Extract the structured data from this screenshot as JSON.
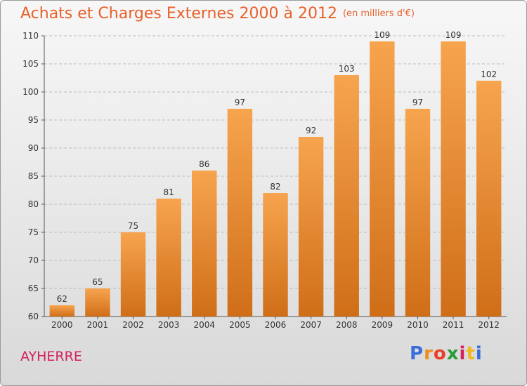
{
  "header": {
    "title": "Achats et Charges Externes 2000 à 2012",
    "unit": "(en milliers d'€)"
  },
  "commune": "AYHERRE",
  "logo": {
    "text": "Proxiti",
    "colors": [
      "#3a6fd8",
      "#f08c1e",
      "#e8402a",
      "#2a9a3a",
      "#d3215c",
      "#f0b81e",
      "#3a6fd8"
    ]
  },
  "colors": {
    "bar_top": "#f7a44e",
    "bar_bottom": "#d06e18",
    "title": "#e8602a",
    "commune": "#d3215c"
  },
  "chart_data": {
    "type": "bar",
    "title": "Achats et Charges Externes 2000 à 2012",
    "subtitle": "(en milliers d'€)",
    "categories": [
      "2000",
      "2001",
      "2002",
      "2003",
      "2004",
      "2005",
      "2006",
      "2007",
      "2008",
      "2009",
      "2010",
      "2011",
      "2012"
    ],
    "values": [
      62,
      65,
      75,
      81,
      86,
      97,
      82,
      92,
      103,
      109,
      97,
      109,
      102
    ],
    "ylim": [
      60,
      110
    ],
    "yticks": [
      60,
      65,
      70,
      75,
      80,
      85,
      90,
      95,
      100,
      105,
      110
    ],
    "grid": true,
    "xlabel": "",
    "ylabel": ""
  }
}
